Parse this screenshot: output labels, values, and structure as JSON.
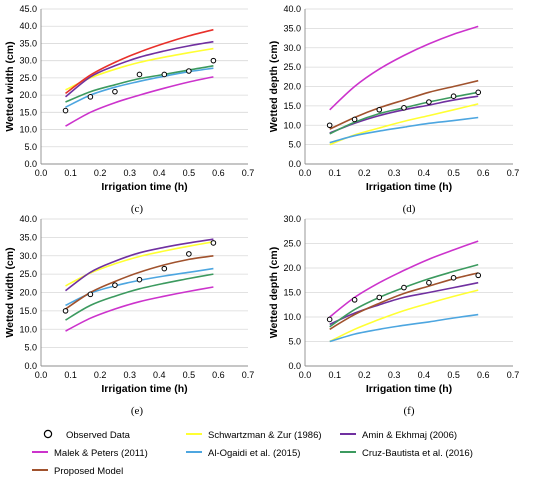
{
  "chart_data": [
    {
      "type": "line",
      "panel_label": "(c)",
      "xlabel": "Irrigation time (h)",
      "ylabel": "Wetted width (cm)",
      "xlim": [
        0.0,
        0.7
      ],
      "ylim": [
        0.0,
        45.0
      ],
      "xticks": [
        0.0,
        0.1,
        0.2,
        0.3,
        0.4,
        0.5,
        0.6,
        0.7
      ],
      "yticks": [
        0.0,
        5.0,
        10.0,
        15.0,
        20.0,
        25.0,
        30.0,
        35.0,
        40.0,
        45.0
      ],
      "x": [
        0.083,
        0.167,
        0.25,
        0.333,
        0.417,
        0.5,
        0.583
      ],
      "observed": [
        15.5,
        19.5,
        21.0,
        26.0,
        26.0,
        27.0,
        30.0
      ],
      "series": [
        {
          "key": "schwartzman",
          "values": [
            21.5,
            25.0,
            27.5,
            29.5,
            31.0,
            32.3,
            33.5
          ]
        },
        {
          "key": "amin",
          "values": [
            19.5,
            25.3,
            28.5,
            31.0,
            32.8,
            34.3,
            35.5
          ]
        },
        {
          "key": "malek",
          "values": [
            11.0,
            15.0,
            17.8,
            20.0,
            22.0,
            23.8,
            25.3
          ]
        },
        {
          "key": "alogaidi",
          "values": [
            16.5,
            20.0,
            22.3,
            24.0,
            25.5,
            26.8,
            27.8
          ]
        },
        {
          "key": "cruz",
          "values": [
            18.0,
            21.0,
            23.0,
            24.8,
            26.0,
            27.3,
            28.5
          ]
        },
        {
          "key": "proposed",
          "values": [
            20.5,
            25.8,
            29.5,
            32.5,
            35.0,
            37.2,
            39.0
          ]
        }
      ]
    },
    {
      "type": "line",
      "panel_label": "(d)",
      "xlabel": "Irrigation time (h)",
      "ylabel": "Wetted depth (cm)",
      "xlim": [
        0.0,
        0.7
      ],
      "ylim": [
        0.0,
        40.0
      ],
      "xticks": [
        0.0,
        0.1,
        0.2,
        0.3,
        0.4,
        0.5,
        0.6,
        0.7
      ],
      "yticks": [
        0.0,
        5.0,
        10.0,
        15.0,
        20.0,
        25.0,
        30.0,
        35.0,
        40.0
      ],
      "x": [
        0.083,
        0.167,
        0.25,
        0.333,
        0.417,
        0.5,
        0.583
      ],
      "observed": [
        10.0,
        11.5,
        14.0,
        14.5,
        16.0,
        17.5,
        18.5
      ],
      "series": [
        {
          "key": "schwartzman",
          "values": [
            5.0,
            7.5,
            9.3,
            11.0,
            12.5,
            14.0,
            15.5
          ]
        },
        {
          "key": "amin",
          "values": [
            8.0,
            10.5,
            12.5,
            14.0,
            15.2,
            16.5,
            17.5
          ]
        },
        {
          "key": "malek",
          "values": [
            14.0,
            20.0,
            24.5,
            28.0,
            31.0,
            33.5,
            35.5
          ]
        },
        {
          "key": "alogaidi",
          "values": [
            5.5,
            7.3,
            8.5,
            9.5,
            10.5,
            11.2,
            12.0
          ]
        },
        {
          "key": "cruz",
          "values": [
            7.8,
            10.8,
            13.0,
            14.5,
            16.0,
            17.3,
            18.5
          ]
        },
        {
          "key": "proposed",
          "values": [
            9.0,
            12.0,
            14.5,
            16.5,
            18.5,
            20.0,
            21.5
          ]
        }
      ]
    },
    {
      "type": "line",
      "panel_label": "(e)",
      "xlabel": "Irrigation time (h)",
      "ylabel": "Wetted width (cm)",
      "xlim": [
        0.0,
        0.7
      ],
      "ylim": [
        0.0,
        40.0
      ],
      "xticks": [
        0.0,
        0.1,
        0.2,
        0.3,
        0.4,
        0.5,
        0.6,
        0.7
      ],
      "yticks": [
        0.0,
        5.0,
        10.0,
        15.0,
        20.0,
        25.0,
        30.0,
        35.0,
        40.0
      ],
      "x": [
        0.083,
        0.167,
        0.25,
        0.333,
        0.417,
        0.5,
        0.583
      ],
      "observed": [
        15.0,
        19.5,
        22.0,
        23.5,
        26.5,
        30.5,
        33.5
      ],
      "series": [
        {
          "key": "schwartzman",
          "values": [
            21.8,
            25.3,
            27.8,
            29.8,
            31.3,
            32.6,
            33.8
          ]
        },
        {
          "key": "amin",
          "values": [
            20.5,
            25.5,
            28.5,
            30.8,
            32.3,
            33.5,
            34.5
          ]
        },
        {
          "key": "malek",
          "values": [
            9.5,
            13.0,
            15.5,
            17.5,
            19.0,
            20.3,
            21.5
          ]
        },
        {
          "key": "alogaidi",
          "values": [
            16.5,
            19.8,
            21.8,
            23.3,
            24.5,
            25.5,
            26.5
          ]
        },
        {
          "key": "cruz",
          "values": [
            12.5,
            16.5,
            19.0,
            21.0,
            22.5,
            23.8,
            25.0
          ]
        },
        {
          "key": "proposed",
          "values": [
            15.5,
            20.0,
            23.0,
            25.5,
            27.5,
            29.0,
            30.0
          ]
        }
      ]
    },
    {
      "type": "line",
      "panel_label": "(f)",
      "xlabel": "Irrigation time (h)",
      "ylabel": "Wetted depth (cm)",
      "xlim": [
        0.0,
        0.7
      ],
      "ylim": [
        0.0,
        30.0
      ],
      "xticks": [
        0.0,
        0.1,
        0.2,
        0.3,
        0.4,
        0.5,
        0.6,
        0.7
      ],
      "yticks": [
        0.0,
        5.0,
        10.0,
        15.0,
        20.0,
        25.0,
        30.0
      ],
      "x": [
        0.083,
        0.167,
        0.25,
        0.333,
        0.417,
        0.5,
        0.583
      ],
      "observed": [
        9.5,
        13.5,
        14.0,
        16.0,
        17.0,
        18.0,
        18.5
      ],
      "series": [
        {
          "key": "schwartzman",
          "values": [
            5.0,
            7.5,
            9.5,
            11.3,
            12.8,
            14.2,
            15.5
          ]
        },
        {
          "key": "amin",
          "values": [
            8.5,
            10.8,
            12.5,
            14.0,
            15.0,
            16.0,
            17.0
          ]
        },
        {
          "key": "malek",
          "values": [
            10.0,
            14.0,
            17.0,
            19.5,
            21.8,
            23.7,
            25.5
          ]
        },
        {
          "key": "alogaidi",
          "values": [
            5.0,
            6.5,
            7.5,
            8.3,
            9.0,
            9.8,
            10.5
          ]
        },
        {
          "key": "cruz",
          "values": [
            8.0,
            11.5,
            14.0,
            16.0,
            17.8,
            19.3,
            20.7
          ]
        },
        {
          "key": "proposed",
          "values": [
            7.5,
            10.5,
            12.8,
            14.8,
            16.3,
            17.8,
            19.0
          ]
        }
      ]
    }
  ],
  "legend": {
    "observed_label": "Observed Data",
    "items": [
      {
        "key": "schwartzman",
        "label": "Schwartzman & Zur (1986)"
      },
      {
        "key": "amin",
        "label": "Amin & Ekhmaj (2006)"
      },
      {
        "key": "malek",
        "label": "Malek & Peters (2011)"
      },
      {
        "key": "alogaidi",
        "label": "Al-Ogaidi et al. (2015)"
      },
      {
        "key": "cruz",
        "label": "Cruz-Bautista et al. (2016)"
      },
      {
        "key": "proposed",
        "label": "Proposed Model"
      }
    ]
  },
  "colors": {
    "schwartzman": "#ffff33",
    "amin": "#7030a0",
    "malek": "#cc33cc",
    "alogaidi": "#4da6e0",
    "cruz": "#3c9a5f",
    "proposed": "#a0522d",
    "c_proposed": "#e8302a",
    "observed_marker": "#000000"
  }
}
